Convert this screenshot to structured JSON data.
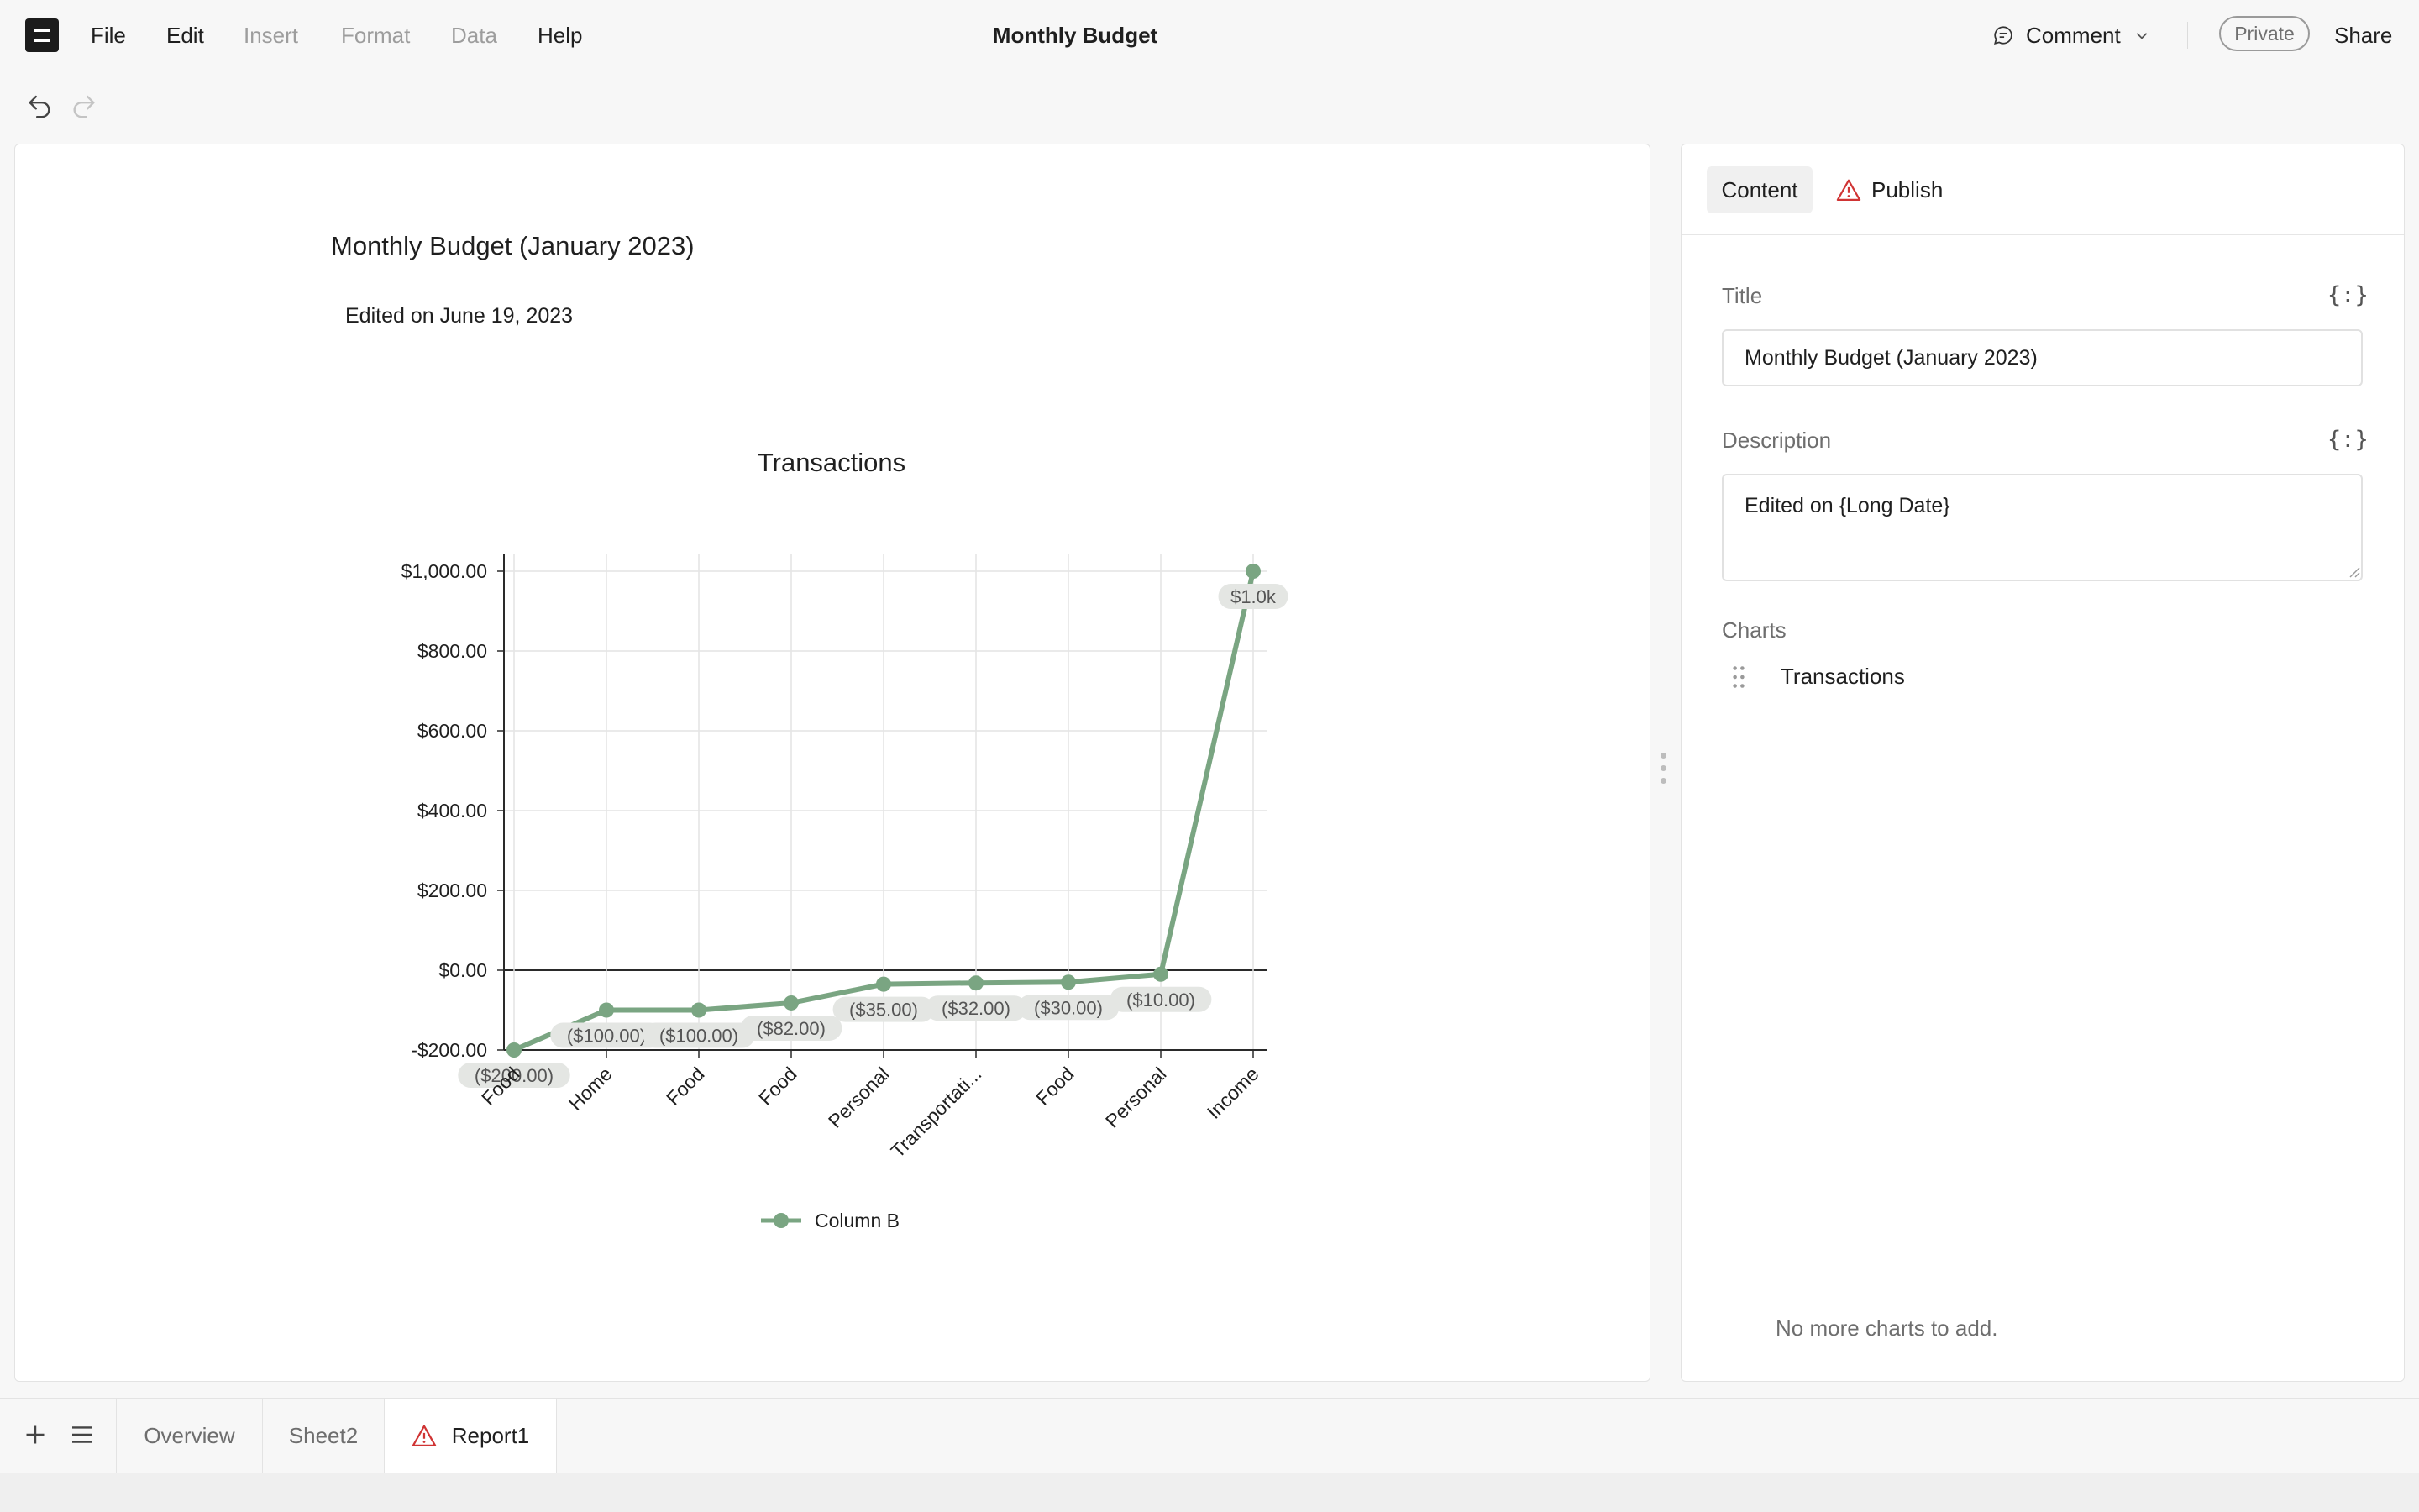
{
  "menubar": {
    "items": [
      {
        "label": "File",
        "enabled": true
      },
      {
        "label": "Edit",
        "enabled": true
      },
      {
        "label": "Insert",
        "enabled": false
      },
      {
        "label": "Format",
        "enabled": false
      },
      {
        "label": "Data",
        "enabled": false
      },
      {
        "label": "Help",
        "enabled": true
      }
    ],
    "doc_title": "Monthly Budget",
    "comment_label": "Comment",
    "private_label": "Private",
    "share_label": "Share"
  },
  "report": {
    "title": "Monthly Budget (January 2023)",
    "description": "Edited on June 19, 2023"
  },
  "chart_data": {
    "type": "line",
    "title": "Transactions",
    "xlabel": "",
    "ylabel": "",
    "categories": [
      "Food",
      "Home",
      "Food",
      "Food",
      "Personal",
      "Transportati...",
      "Food",
      "Personal",
      "Income"
    ],
    "series": [
      {
        "name": "Column B",
        "values": [
          -200,
          -100,
          -100,
          -82,
          -35,
          -32,
          -30,
          -10,
          1000
        ],
        "data_labels": [
          "($200.00)",
          "($100.00)",
          "($100.00)",
          "($82.00)",
          "($35.00)",
          "($32.00)",
          "($30.00)",
          "($10.00)",
          "$1.0k"
        ]
      }
    ],
    "ylim": [
      -200,
      1000
    ],
    "yticks": [
      -200,
      0,
      200,
      400,
      600,
      800,
      1000
    ],
    "ytick_labels": [
      "-$200.00",
      "$0.00",
      "$200.00",
      "$400.00",
      "$600.00",
      "$800.00",
      "$1,000.00"
    ],
    "grid": true,
    "legend_position": "bottom",
    "color": "#7aa582"
  },
  "panel": {
    "tabs": [
      {
        "label": "Content",
        "active": true
      },
      {
        "label": "Publish",
        "warning": true
      }
    ],
    "title_label": "Title",
    "title_value": "Monthly Budget (January 2023)",
    "description_label": "Description",
    "description_value": "Edited on {Long Date}",
    "braces_icon": "{:}",
    "charts_label": "Charts",
    "charts": [
      "Transactions"
    ],
    "no_more_charts": "No more charts to add."
  },
  "sheets": {
    "tabs": [
      {
        "label": "Overview",
        "active": false
      },
      {
        "label": "Sheet2",
        "active": false
      },
      {
        "label": "Report1",
        "active": true,
        "warning": true
      }
    ]
  },
  "icons": {
    "logo": "app-logo-icon",
    "comment": "comment-bubble-icon",
    "undo": "undo-icon",
    "redo": "redo-icon",
    "warning": "warning-triangle-icon",
    "drag": "drag-handle-icon",
    "plus": "plus-icon",
    "menu": "hamburger-menu-icon"
  },
  "colors": {
    "accent_line": "#7aa582",
    "warning": "#d03434"
  }
}
